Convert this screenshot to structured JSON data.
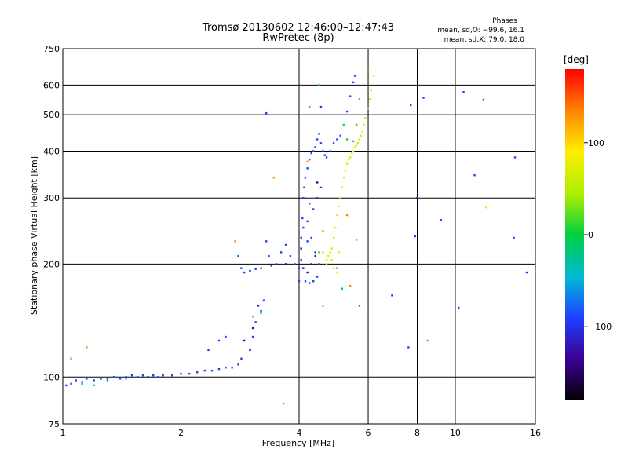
{
  "chart_data": {
    "type": "scatter",
    "title": "Tromsø 20130602 12:46:00–12:47:43",
    "subtitle": "RwPretec (8p)",
    "xlabel": "Frequency [MHz]",
    "ylabel": "Stationary phase Virtual Height [km]",
    "x_scale": "log",
    "y_scale": "log",
    "xlim": [
      1,
      16
    ],
    "ylim": [
      75,
      750
    ],
    "x_ticks": [
      1,
      2,
      4,
      6,
      8,
      10,
      16
    ],
    "x_tick_labels": [
      "1",
      "2",
      "4",
      "6",
      "8",
      "10",
      "16"
    ],
    "y_ticks": [
      75,
      100,
      200,
      300,
      400,
      500,
      600,
      750
    ],
    "y_tick_labels": [
      "75",
      "100",
      "200",
      "300",
      "400",
      "500",
      "600",
      "750"
    ],
    "grid": true,
    "stats": {
      "heading": "Phases",
      "line1": "mean, sd,O: −99.6, 16.1",
      "line2": "mean, sd,X:  79.0, 18.0"
    },
    "colorbar": {
      "label": "[deg]",
      "ticks": [
        100,
        0,
        -100
      ],
      "tick_labels": [
        "100",
        "0",
        "−100"
      ],
      "range": [
        -180,
        180
      ]
    },
    "series": [
      {
        "color_value_deg": -115,
        "color": "#1f3fff",
        "points": [
          [
            1.02,
            95
          ],
          [
            1.05,
            96
          ],
          [
            1.08,
            98
          ],
          [
            1.12,
            97
          ],
          [
            1.15,
            99
          ],
          [
            1.2,
            98
          ],
          [
            1.25,
            99
          ],
          [
            1.3,
            99
          ],
          [
            1.35,
            100
          ],
          [
            1.4,
            99
          ],
          [
            1.45,
            100
          ],
          [
            1.5,
            101
          ],
          [
            1.55,
            100
          ],
          [
            1.6,
            101
          ],
          [
            1.65,
            100
          ],
          [
            1.7,
            101
          ],
          [
            1.75,
            100
          ],
          [
            1.8,
            101
          ],
          [
            1.9,
            101
          ],
          [
            2.0,
            102
          ],
          [
            2.1,
            102
          ],
          [
            2.2,
            103
          ],
          [
            2.3,
            104
          ],
          [
            2.4,
            104
          ],
          [
            2.5,
            105
          ],
          [
            2.6,
            106
          ],
          [
            2.7,
            106
          ],
          [
            2.8,
            108
          ],
          [
            2.85,
            112
          ],
          [
            2.5,
            125
          ],
          [
            2.6,
            128
          ],
          [
            2.35,
            118
          ],
          [
            3.05,
            128
          ],
          [
            3.1,
            140
          ],
          [
            3.2,
            150
          ],
          [
            3.25,
            160
          ],
          [
            2.8,
            210
          ],
          [
            2.85,
            195
          ],
          [
            2.9,
            190
          ],
          [
            3.0,
            192
          ],
          [
            3.1,
            194
          ],
          [
            3.2,
            195
          ],
          [
            3.3,
            230
          ],
          [
            3.35,
            210
          ],
          [
            3.4,
            198
          ],
          [
            3.5,
            200
          ],
          [
            3.6,
            215
          ],
          [
            3.7,
            225
          ],
          [
            3.8,
            210
          ],
          [
            3.9,
            200
          ],
          [
            4.0,
            195
          ],
          [
            4.0,
            180
          ],
          [
            4.05,
            205
          ],
          [
            4.05,
            235
          ],
          [
            4.08,
            265
          ],
          [
            4.1,
            300
          ],
          [
            4.12,
            320
          ],
          [
            4.15,
            340
          ],
          [
            4.2,
            360
          ],
          [
            4.25,
            380
          ],
          [
            4.3,
            395
          ],
          [
            4.35,
            400
          ],
          [
            4.4,
            410
          ],
          [
            4.45,
            430
          ],
          [
            4.5,
            445
          ],
          [
            4.55,
            420
          ],
          [
            4.6,
            400
          ],
          [
            4.65,
            390
          ],
          [
            4.7,
            385
          ],
          [
            4.8,
            400
          ],
          [
            4.9,
            420
          ],
          [
            5.0,
            430
          ],
          [
            5.1,
            440
          ],
          [
            5.2,
            470
          ],
          [
            5.3,
            510
          ],
          [
            5.4,
            560
          ],
          [
            5.5,
            610
          ],
          [
            5.55,
            635
          ],
          [
            4.15,
            180
          ],
          [
            4.25,
            178
          ],
          [
            4.35,
            180
          ],
          [
            4.45,
            185
          ],
          [
            4.5,
            200
          ],
          [
            4.4,
            215
          ],
          [
            4.3,
            235
          ],
          [
            4.2,
            260
          ],
          [
            4.25,
            290
          ],
          [
            4.35,
            280
          ],
          [
            4.45,
            300
          ],
          [
            4.55,
            320
          ],
          [
            4.2,
            230
          ],
          [
            4.1,
            250
          ],
          [
            3.3,
            505
          ],
          [
            4.55,
            525
          ],
          [
            7.7,
            530
          ],
          [
            8.3,
            555
          ],
          [
            10.5,
            575
          ],
          [
            11.8,
            548
          ],
          [
            14.2,
            385
          ],
          [
            14.1,
            235
          ],
          [
            15.2,
            190
          ],
          [
            11.2,
            345
          ],
          [
            9.2,
            262
          ],
          [
            7.9,
            237
          ],
          [
            7.6,
            120
          ],
          [
            6.9,
            165
          ],
          [
            10.2,
            153
          ]
        ]
      },
      {
        "color_value_deg": -145,
        "color": "#3a00b0",
        "points": [
          [
            2.9,
            125
          ],
          [
            3.0,
            118
          ],
          [
            3.15,
            155
          ],
          [
            3.05,
            135
          ],
          [
            3.7,
            200
          ],
          [
            4.2,
            190
          ],
          [
            4.1,
            195
          ],
          [
            4.4,
            210
          ],
          [
            4.3,
            200
          ],
          [
            4.05,
            220
          ],
          [
            4.45,
            330
          ],
          [
            8.0,
            300
          ]
        ]
      },
      {
        "color_value_deg": 90,
        "color": "#d7ee00",
        "points": [
          [
            4.7,
            200
          ],
          [
            4.75,
            210
          ],
          [
            4.8,
            215
          ],
          [
            4.85,
            220
          ],
          [
            4.9,
            235
          ],
          [
            4.95,
            250
          ],
          [
            5.0,
            270
          ],
          [
            5.05,
            285
          ],
          [
            5.1,
            300
          ],
          [
            5.15,
            320
          ],
          [
            5.2,
            340
          ],
          [
            5.25,
            355
          ],
          [
            5.3,
            370
          ],
          [
            5.35,
            380
          ],
          [
            5.4,
            385
          ],
          [
            5.45,
            395
          ],
          [
            5.5,
            400
          ],
          [
            5.55,
            410
          ],
          [
            5.6,
            415
          ],
          [
            5.65,
            420
          ],
          [
            5.7,
            430
          ],
          [
            5.75,
            440
          ],
          [
            5.8,
            450
          ],
          [
            5.85,
            470
          ],
          [
            5.9,
            490
          ],
          [
            6.0,
            520
          ],
          [
            6.05,
            550
          ],
          [
            6.1,
            580
          ],
          [
            4.9,
            195
          ],
          [
            5.0,
            190
          ],
          [
            4.85,
            205
          ],
          [
            5.05,
            215
          ],
          [
            4.6,
            215
          ],
          [
            4.7,
            205
          ],
          [
            6.2,
            635
          ],
          [
            12.0,
            283
          ]
        ]
      },
      {
        "color_value_deg": 20,
        "color": "#33cc33",
        "points": [
          [
            5.5,
            425
          ],
          [
            5.6,
            470
          ],
          [
            5.3,
            430
          ],
          [
            5.7,
            550
          ],
          [
            5.2,
            470
          ],
          [
            4.5,
            215
          ],
          [
            5.0,
            195
          ]
        ]
      },
      {
        "color_value_deg": -40,
        "color": "#00b8d6",
        "points": [
          [
            1.12,
            96
          ],
          [
            1.2,
            95
          ],
          [
            1.3,
            98
          ],
          [
            1.45,
            99
          ],
          [
            3.2,
            148
          ],
          [
            4.25,
            525
          ],
          [
            5.15,
            172
          ],
          [
            4.5,
            600
          ]
        ]
      },
      {
        "color_value_deg": 140,
        "color": "#ff8800",
        "points": [
          [
            1.15,
            120
          ],
          [
            1.05,
            112
          ],
          [
            2.75,
            230
          ],
          [
            3.05,
            145
          ],
          [
            3.45,
            340
          ],
          [
            3.65,
            85
          ],
          [
            4.2,
            375
          ],
          [
            4.6,
            245
          ],
          [
            5.3,
            270
          ],
          [
            5.4,
            175
          ],
          [
            5.6,
            232
          ],
          [
            8.5,
            125
          ],
          [
            6.0,
            655
          ],
          [
            4.6,
            155
          ]
        ]
      },
      {
        "color_value_deg": 175,
        "color": "#ff2200",
        "points": [
          [
            5.7,
            155
          ]
        ]
      }
    ]
  }
}
